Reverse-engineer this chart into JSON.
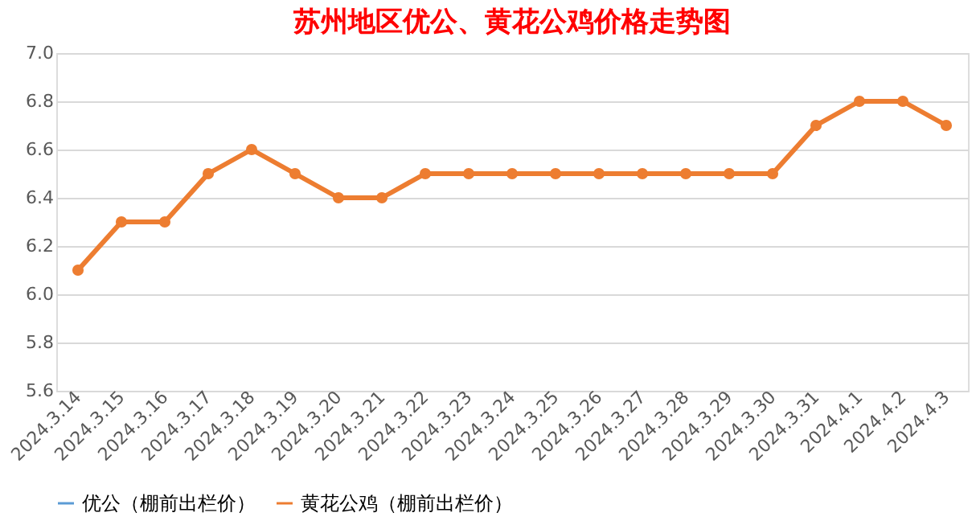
{
  "chart_data": {
    "type": "line",
    "title": "苏州地区优公、黄花公鸡价格走势图",
    "categories": [
      "2024.3.14",
      "2024.3.15",
      "2024.3.16",
      "2024.3.17",
      "2024.3.18",
      "2024.3.19",
      "2024.3.20",
      "2024.3.21",
      "2024.3.22",
      "2024.3.23",
      "2024.3.24",
      "2024.3.25",
      "2024.3.26",
      "2024.3.27",
      "2024.3.28",
      "2024.3.29",
      "2024.3.30",
      "2024.3.31",
      "2024.4.1",
      "2024.4.2",
      "2024.4.3"
    ],
    "series": [
      {
        "name": "优公（棚前出栏价）",
        "color": "#5b9bd5",
        "values": [
          null,
          null,
          null,
          null,
          null,
          null,
          null,
          null,
          null,
          null,
          null,
          null,
          null,
          null,
          null,
          null,
          null,
          null,
          null,
          null,
          null
        ]
      },
      {
        "name": "黄花公鸡（棚前出栏价）",
        "color": "#ed7d31",
        "values": [
          6.1,
          6.3,
          6.3,
          6.5,
          6.6,
          6.5,
          6.4,
          6.4,
          6.5,
          6.5,
          6.5,
          6.5,
          6.5,
          6.5,
          6.5,
          6.5,
          6.5,
          6.7,
          6.8,
          6.8,
          6.7
        ]
      }
    ],
    "ylim": [
      5.6,
      7.0
    ],
    "yticks": [
      5.6,
      5.8,
      {
        "value": 6,
        "label": "6.0"
      },
      6.2,
      6.4,
      6.6,
      6.8,
      {
        "value": 7,
        "label": "7.0"
      }
    ],
    "grid": "y",
    "legend": "bottom",
    "marker": "circle",
    "line_style": "solid"
  }
}
